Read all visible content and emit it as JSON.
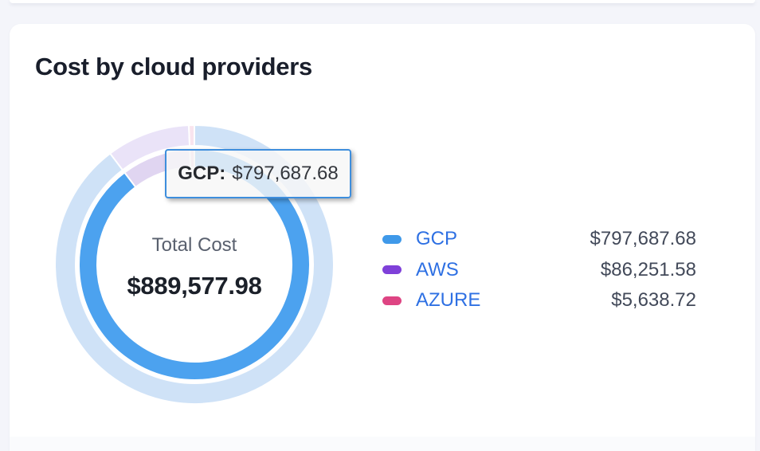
{
  "card": {
    "title": "Cost by cloud providers"
  },
  "chart_data": {
    "type": "pie",
    "variant": "donut-with-halo-ring",
    "title": "Cost by cloud providers",
    "center": {
      "label": "Total Cost",
      "value": "$889,577.98"
    },
    "total": 889577.98,
    "legend_position": "right",
    "hovered_slice": "GCP",
    "series": [
      {
        "name": "GCP",
        "value": 797687.68,
        "value_display": "$797,687.68",
        "percent": 89.67,
        "slice_color": "#4ca2ef",
        "halo_color": "#cfe2f7",
        "legend_color": "#3f99e9"
      },
      {
        "name": "AWS",
        "value": 86251.58,
        "value_display": "$86,251.58",
        "percent": 9.7,
        "slice_color": "#e0d5f1",
        "halo_color": "#eae3f8",
        "legend_color": "#7f40d9"
      },
      {
        "name": "AZURE",
        "value": 5638.72,
        "value_display": "$5,638.72",
        "percent": 0.63,
        "slice_color": "#f4cddf",
        "halo_color": "#f9e4ee",
        "legend_color": "#de4483"
      }
    ]
  },
  "tooltip": {
    "label": "GCP:",
    "value": "$797,687.68"
  },
  "colors": {
    "page_bg": "#f4f5fa",
    "card_bg": "#ffffff",
    "title_text": "#191e2b",
    "legend_label": "#2e70e3",
    "legend_value": "#424959",
    "center_label": "#59606e",
    "center_value": "#1b2029",
    "tooltip_border": "#3e8edd"
  }
}
